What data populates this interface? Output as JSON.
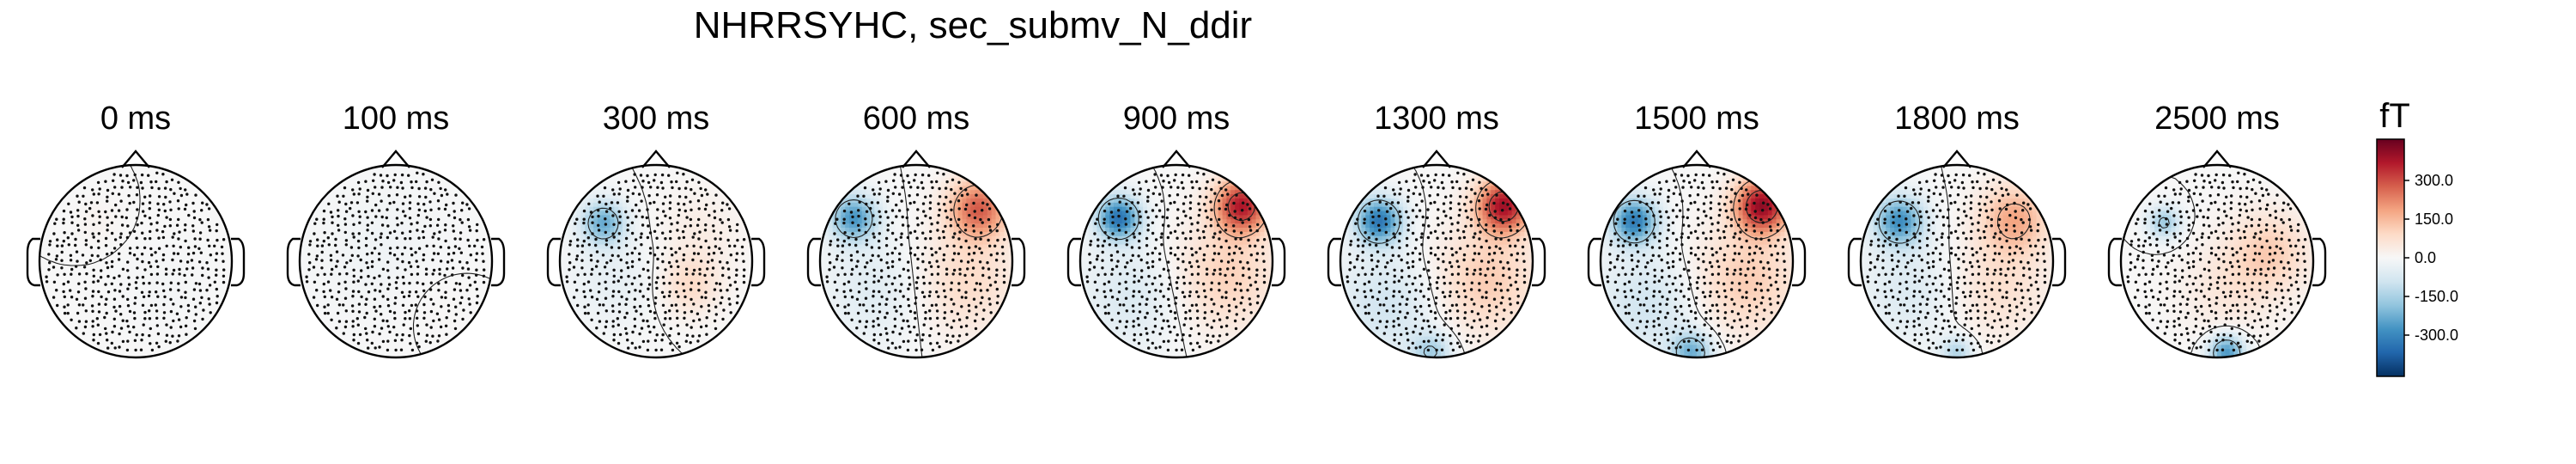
{
  "chart_data": {
    "type": "heatmap",
    "title": "NHRRSYHC, sec_submv_N_ddir",
    "panels": [
      {
        "label": "0 ms",
        "time_ms": 0,
        "sources": [
          {
            "x": -0.4,
            "y": 0.4,
            "s": 0.15,
            "v": 15
          },
          {
            "x": 0.3,
            "y": -0.3,
            "s": 0.3,
            "v": -10
          }
        ]
      },
      {
        "label": "100 ms",
        "time_ms": 100,
        "sources": [
          {
            "x": -0.2,
            "y": 0.1,
            "s": 0.5,
            "v": -18
          },
          {
            "x": 0.4,
            "y": -0.4,
            "s": 0.3,
            "v": 8
          }
        ]
      },
      {
        "label": "300 ms",
        "time_ms": 300,
        "sources": [
          {
            "x": -0.55,
            "y": 0.4,
            "s": 0.16,
            "v": -230
          },
          {
            "x": -0.45,
            "y": -0.2,
            "s": 0.35,
            "v": -40
          },
          {
            "x": 0.35,
            "y": -0.25,
            "s": 0.22,
            "v": 85
          },
          {
            "x": 0.45,
            "y": 0.3,
            "s": 0.3,
            "v": 35
          }
        ]
      },
      {
        "label": "600 ms",
        "time_ms": 600,
        "sources": [
          {
            "x": -0.65,
            "y": 0.45,
            "s": 0.17,
            "v": -270
          },
          {
            "x": -0.4,
            "y": -0.3,
            "s": 0.4,
            "v": -60
          },
          {
            "x": 0.65,
            "y": 0.55,
            "s": 0.22,
            "v": 270
          },
          {
            "x": 0.5,
            "y": -0.2,
            "s": 0.4,
            "v": 90
          }
        ]
      },
      {
        "label": "900 ms",
        "time_ms": 900,
        "sources": [
          {
            "x": -0.6,
            "y": 0.45,
            "s": 0.16,
            "v": -340
          },
          {
            "x": -0.45,
            "y": -0.35,
            "s": 0.4,
            "v": -70
          },
          {
            "x": 0.68,
            "y": 0.58,
            "s": 0.2,
            "v": 360
          },
          {
            "x": 0.5,
            "y": -0.15,
            "s": 0.4,
            "v": 110
          }
        ]
      },
      {
        "label": "1300 ms",
        "time_ms": 1300,
        "sources": [
          {
            "x": -0.6,
            "y": 0.42,
            "s": 0.17,
            "v": -330
          },
          {
            "x": -0.5,
            "y": -0.45,
            "s": 0.4,
            "v": -90
          },
          {
            "x": 0.7,
            "y": 0.58,
            "s": 0.2,
            "v": 380
          },
          {
            "x": 0.5,
            "y": -0.2,
            "s": 0.4,
            "v": 120
          },
          {
            "x": -0.05,
            "y": -0.95,
            "s": 0.15,
            "v": -150
          }
        ]
      },
      {
        "label": "1500 ms",
        "time_ms": 1500,
        "sources": [
          {
            "x": -0.65,
            "y": 0.42,
            "s": 0.17,
            "v": -320
          },
          {
            "x": -0.5,
            "y": -0.45,
            "s": 0.4,
            "v": -90
          },
          {
            "x": 0.68,
            "y": 0.58,
            "s": 0.2,
            "v": 400
          },
          {
            "x": 0.5,
            "y": -0.2,
            "s": 0.4,
            "v": 120
          },
          {
            "x": -0.05,
            "y": -0.95,
            "s": 0.15,
            "v": -220
          }
        ]
      },
      {
        "label": "1800 ms",
        "time_ms": 1800,
        "sources": [
          {
            "x": -0.6,
            "y": 0.42,
            "s": 0.18,
            "v": -280
          },
          {
            "x": -0.45,
            "y": -0.3,
            "s": 0.4,
            "v": -70
          },
          {
            "x": 0.6,
            "y": 0.45,
            "s": 0.25,
            "v": 170
          },
          {
            "x": 0.4,
            "y": -0.25,
            "s": 0.4,
            "v": 80
          },
          {
            "x": 0.0,
            "y": -0.95,
            "s": 0.12,
            "v": -140
          }
        ]
      },
      {
        "label": "2500 ms",
        "time_ms": 2500,
        "sources": [
          {
            "x": -0.55,
            "y": 0.4,
            "s": 0.12,
            "v": -170
          },
          {
            "x": 0.55,
            "y": 0.1,
            "s": 0.3,
            "v": 110
          },
          {
            "x": 0.1,
            "y": -0.3,
            "s": 0.35,
            "v": 50
          },
          {
            "x": 0.1,
            "y": -0.95,
            "s": 0.13,
            "v": -280
          }
        ]
      }
    ],
    "colorbar": {
      "label": "fT",
      "range": [
        -460,
        460
      ],
      "ticks": [
        300,
        150,
        0,
        -150,
        -300
      ],
      "tick_labels": [
        "300.0",
        "150.0",
        "0.0",
        "-150.0",
        "-300.0"
      ],
      "colormap": "RdBu_r",
      "colors": [
        "#67001f",
        "#b2182b",
        "#d6604d",
        "#f4a582",
        "#fddbc7",
        "#f7f7f7",
        "#d1e5f0",
        "#92c5de",
        "#4393c3",
        "#2166ac",
        "#053061"
      ]
    },
    "contours": [
      -150,
      0,
      150,
      300
    ],
    "sensors_shown": true
  }
}
